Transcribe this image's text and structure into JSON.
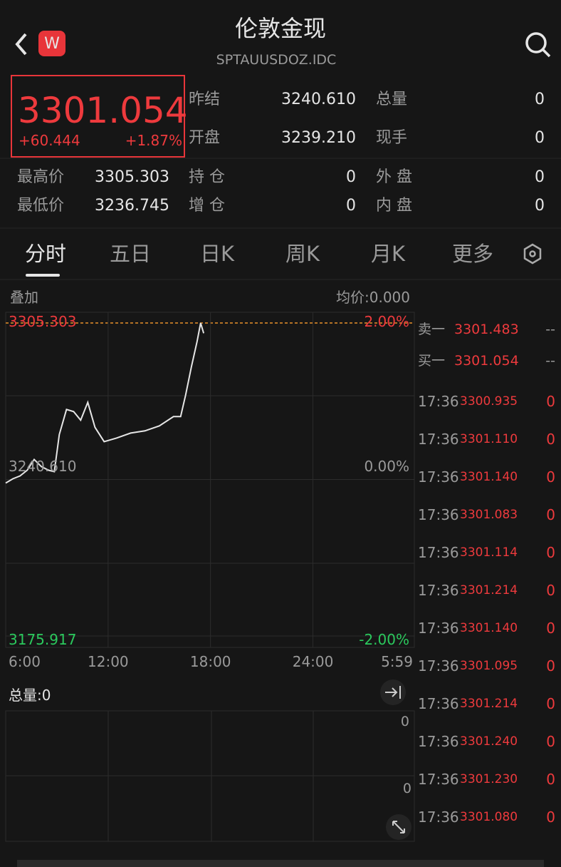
{
  "header": {
    "title": "伦敦金现",
    "code": "SPTAUUSDOZ.IDC",
    "badge": "W"
  },
  "quote": {
    "price": "3301.054",
    "change": "+60.444",
    "change_pct": "+1.87%"
  },
  "stats": [
    {
      "label": "昨结",
      "value": "3240.610"
    },
    {
      "label": "开盘",
      "value": "3239.210"
    },
    {
      "label": "总量",
      "value": "0"
    },
    {
      "label": "现手",
      "value": "0"
    },
    {
      "label": "最高价",
      "value": "3305.303"
    },
    {
      "label": "最低价",
      "value": "3236.745"
    },
    {
      "label": "持  仓",
      "value": "0"
    },
    {
      "label": "增  仓",
      "value": "0"
    },
    {
      "label": "外  盘",
      "value": "0"
    },
    {
      "label": "内  盘",
      "value": "0"
    }
  ],
  "tabs": [
    "分时",
    "五日",
    "日K",
    "周K",
    "月K",
    "更多"
  ],
  "chart_data": {
    "type": "line",
    "overlay_label": "叠加",
    "avg_label": "均价:0.000",
    "x": [
      6.0,
      6.42,
      6.84,
      7.26,
      7.67,
      8.09,
      8.51,
      8.85,
      9.14,
      9.56,
      9.98,
      10.39,
      10.81,
      11.23,
      11.77,
      12.49,
      13.32,
      14.16,
      15.0,
      15.83,
      16.25,
      16.54,
      16.88,
      17.21,
      17.42,
      17.6
    ],
    "series": [
      {
        "name": "price",
        "color": "#e6e6e6",
        "values": [
          3239.13,
          3240.91,
          3242.09,
          3244.45,
          3248.88,
          3245.93,
          3244.45,
          3243.86,
          3259.22,
          3269.56,
          3268.67,
          3265.13,
          3272.51,
          3262.17,
          3256.27,
          3257.74,
          3259.81,
          3260.7,
          3262.77,
          3266.61,
          3266.61,
          3275.47,
          3287.28,
          3297.62,
          3305.303,
          3301.054
        ]
      }
    ],
    "ylim": [
      3175.917,
      3305.303
    ],
    "yticks": [
      3305.303,
      {
        "value": 3240.61,
        "label": "3240.610"
      },
      3175.917
    ],
    "pct_labels": [
      "2.00%",
      "0.00%",
      "-2.00%"
    ],
    "xlim": [
      6,
      29.983
    ],
    "xticks": [
      {
        "value": 6,
        "label": "6:00"
      },
      {
        "value": 12,
        "label": "12:00"
      },
      {
        "value": 18,
        "label": "18:00"
      },
      {
        "value": 24,
        "label": "24:00"
      },
      {
        "value": 29.983,
        "label": "5:59"
      }
    ]
  },
  "volume": {
    "label": "总量:0",
    "ticks": [
      "0",
      "0"
    ]
  },
  "orderbook": [
    {
      "label": "卖一",
      "price": "3301.483",
      "volume": "--"
    },
    {
      "label": "买一",
      "price": "3301.054",
      "volume": "--"
    }
  ],
  "trades": [
    {
      "time": "17:36",
      "price": "3300.935",
      "volume": "0"
    },
    {
      "time": "17:36",
      "price": "3301.110",
      "volume": "0"
    },
    {
      "time": "17:36",
      "price": "3301.140",
      "volume": "0"
    },
    {
      "time": "17:36",
      "price": "3301.083",
      "volume": "0"
    },
    {
      "time": "17:36",
      "price": "3301.114",
      "volume": "0"
    },
    {
      "time": "17:36",
      "price": "3301.214",
      "volume": "0"
    },
    {
      "time": "17:36",
      "price": "3301.140",
      "volume": "0"
    },
    {
      "time": "17:36",
      "price": "3301.095",
      "volume": "0"
    },
    {
      "time": "17:36",
      "price": "3301.214",
      "volume": "0"
    },
    {
      "time": "17:36",
      "price": "3301.240",
      "volume": "0"
    },
    {
      "time": "17:36",
      "price": "3301.230",
      "volume": "0"
    },
    {
      "time": "17:36",
      "price": "3301.080",
      "volume": "0"
    }
  ]
}
